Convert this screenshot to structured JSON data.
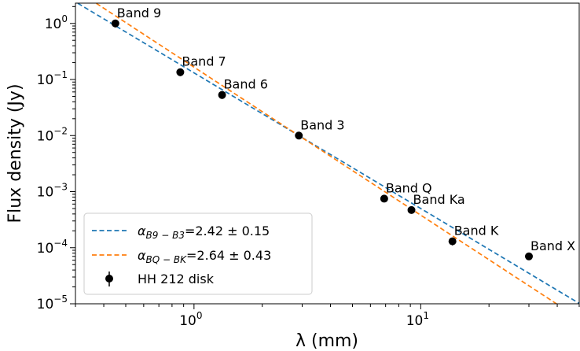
{
  "chart_data": {
    "type": "scatter",
    "xlabel": "λ (mm)",
    "ylabel": "Flux density (Jy)",
    "xscale": "log",
    "yscale": "log",
    "xlim": [
      0.3,
      50
    ],
    "ylim": [
      1e-05,
      2.3
    ],
    "x_ticks": [
      {
        "value": 1,
        "base": "10",
        "exp": "0"
      },
      {
        "value": 10,
        "base": "10",
        "exp": "1"
      }
    ],
    "y_ticks": [
      {
        "value": 1,
        "base": "10",
        "exp": "0"
      },
      {
        "value": 0.1,
        "base": "10",
        "exp": "−1"
      },
      {
        "value": 0.01,
        "base": "10",
        "exp": "−2"
      },
      {
        "value": 0.001,
        "base": "10",
        "exp": "−3"
      },
      {
        "value": 0.0001,
        "base": "10",
        "exp": "−4"
      },
      {
        "value": 1e-05,
        "base": "10",
        "exp": "−5"
      }
    ],
    "series": [
      {
        "name": "HH 212 disk",
        "kind": "points",
        "color": "#000000",
        "points": [
          {
            "label": "Band 9",
            "x": 0.45,
            "y": 1.0,
            "err": 0.15
          },
          {
            "label": "Band 7",
            "x": 0.87,
            "y": 0.135,
            "err": 0.02
          },
          {
            "label": "Band 6",
            "x": 1.33,
            "y": 0.053,
            "err": 0.008
          },
          {
            "label": "Band 3",
            "x": 2.9,
            "y": 0.01,
            "err": 0.0005
          },
          {
            "label": "Band Q",
            "x": 6.9,
            "y": 0.00075,
            "err": 7e-05
          },
          {
            "label": "Band Ka",
            "x": 9.1,
            "y": 0.00047,
            "err": 4e-05
          },
          {
            "label": "Band K",
            "x": 13.8,
            "y": 0.00013,
            "err": 2e-05
          },
          {
            "label": "Band X",
            "x": 30.0,
            "y": 7e-05,
            "err": 1e-05
          }
        ]
      },
      {
        "name": "α_{B9−B3}=2.42 ± 0.15",
        "legend": {
          "alpha": "α",
          "sub": "B9 − B3",
          "rest": "=2.42 ± 0.15"
        },
        "kind": "powerlaw",
        "color": "#1f77b4",
        "ref_x": 2.9,
        "ref_y": 0.01,
        "slope": 2.42
      },
      {
        "name": "α_{BQ−BK}=2.64 ± 0.43",
        "legend": {
          "alpha": "α",
          "sub": "BQ − BK",
          "rest": "=2.64 ± 0.43"
        },
        "kind": "powerlaw",
        "color": "#ff7f0e",
        "ref_x": 2.9,
        "ref_y": 0.01,
        "slope": 2.64
      }
    ],
    "legend_position": "lower-left",
    "grid": false
  }
}
